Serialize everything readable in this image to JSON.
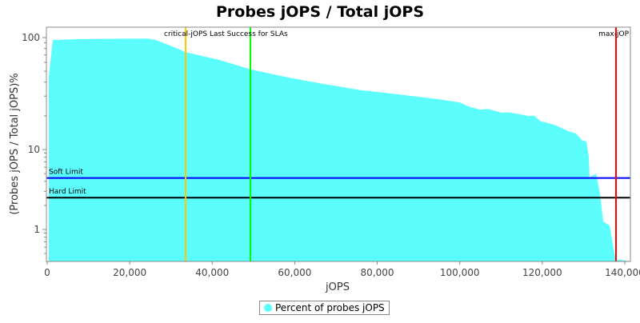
{
  "chart_data": {
    "type": "area",
    "title": "Probes jOPS / Total jOPS",
    "xlabel": "jOPS",
    "ylabel": "(Probes jOPS / Total jOPS)%",
    "xlim": [
      0,
      141400
    ],
    "ylim": [
      0.4,
      123
    ],
    "yscale": "log",
    "x_ticks": [
      "0",
      "20,000",
      "40,000",
      "60,000",
      "80,000",
      "100,000",
      "120,000",
      "140,000"
    ],
    "x_tick_values": [
      0,
      20000,
      40000,
      60000,
      80000,
      100000,
      120000,
      140000
    ],
    "y_ticks": [
      "1",
      "10",
      "100"
    ],
    "y_tick_values": [
      1,
      10,
      100
    ],
    "series": [
      {
        "name": "Percent of probes jOPS",
        "color": "#5bfdfd",
        "x": [
          390,
          1360,
          7950,
          24430,
          26370,
          30830,
          33550,
          41880,
          49250,
          58370,
          66120,
          75820,
          85520,
          95210,
          100060,
          102000,
          104910,
          106850,
          110140,
          111690,
          114600,
          116540,
          118090,
          119450,
          121390,
          123330,
          126240,
          128180,
          129730,
          130700,
          131280,
          131470,
          133020,
          133990,
          134770,
          136320,
          137870,
          138450,
          141360
        ],
        "y": [
          45,
          95,
          97,
          98,
          95,
          82,
          74,
          63,
          52,
          44,
          39,
          34,
          31,
          28,
          26.3,
          24.3,
          22.7,
          23,
          21.3,
          21.5,
          20.6,
          20,
          20,
          18,
          17.2,
          16.4,
          14.6,
          13.9,
          12,
          11.8,
          8.1,
          4.5,
          5,
          2.8,
          1.26,
          1.12,
          0.4,
          0.42,
          0.4
        ]
      }
    ],
    "horizontal_markers": [
      {
        "label": "Soft Limit",
        "value": 4.4,
        "color": "#0000ff"
      },
      {
        "label": "Hard Limit",
        "value": 2.5,
        "color": "#000000"
      }
    ],
    "vertical_markers": [
      {
        "label": "critical-jOPS",
        "value": 33550,
        "color": "#ffc800"
      },
      {
        "label": "Last Success for SLAs",
        "value": 49250,
        "color": "#00ff00"
      },
      {
        "label": "max-jOP",
        "value": 137870,
        "color": "#ff0000"
      }
    ],
    "vertical_marker_caption": "critical-jOPS Last Success for SLAs",
    "legend": {
      "label": "Percent of probes jOPS",
      "placement": "bottom"
    }
  }
}
